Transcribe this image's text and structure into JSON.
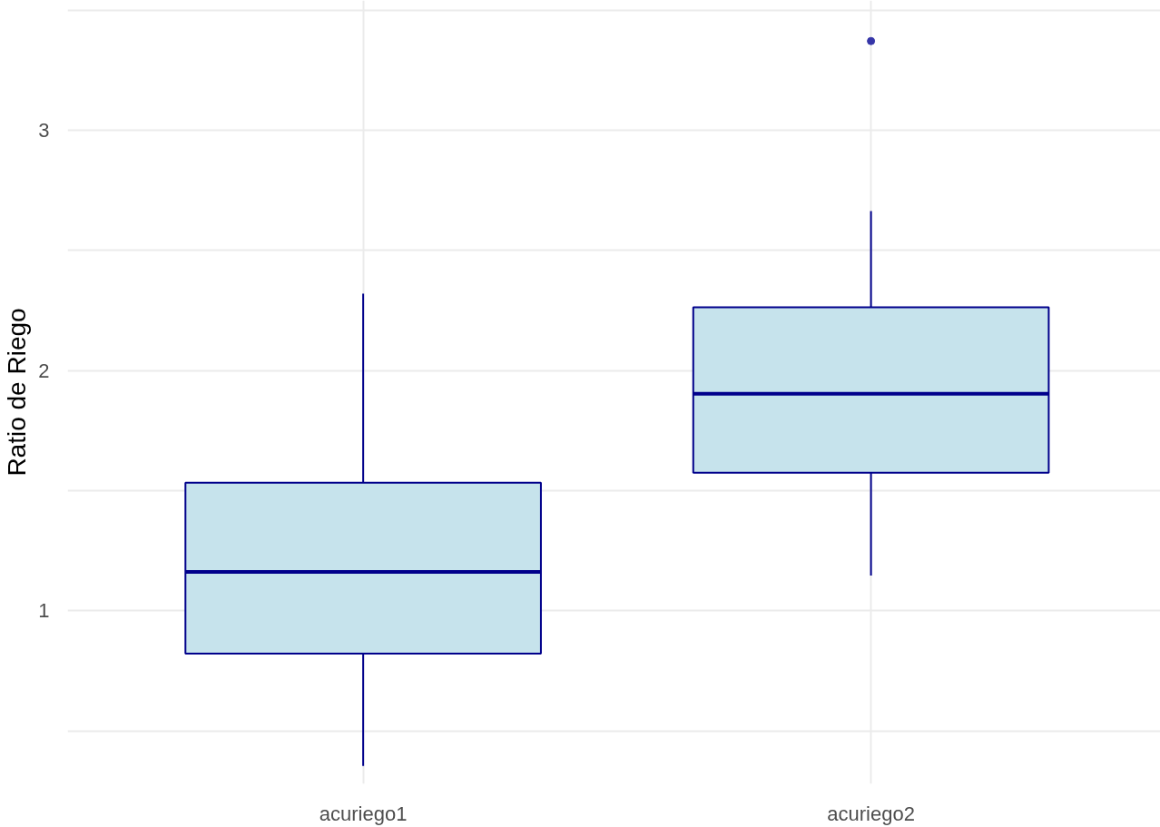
{
  "chart_data": {
    "type": "box",
    "ylabel": "Ratio de Riego",
    "categories": [
      "acuriego1",
      "acuriego2"
    ],
    "series": [
      {
        "color": "#c6e3ec",
        "boxes": [
          {
            "low": 0.355,
            "q1": 0.822,
            "median": 1.162,
            "q3": 1.533,
            "high": 2.32
          },
          {
            "low": 1.147,
            "q1": 1.575,
            "median": 1.903,
            "q3": 2.263,
            "high": 2.664,
            "outliers": [
              3.371
            ]
          }
        ]
      }
    ],
    "ylim": [
      0.28,
      3.54
    ],
    "yticks": [
      {
        "value": 0.5,
        "label": null
      },
      1,
      {
        "value": 1.5,
        "label": null
      },
      2,
      {
        "value": 2.5,
        "label": null
      },
      3,
      {
        "value": 3.5,
        "label": null
      }
    ],
    "grid": true
  }
}
